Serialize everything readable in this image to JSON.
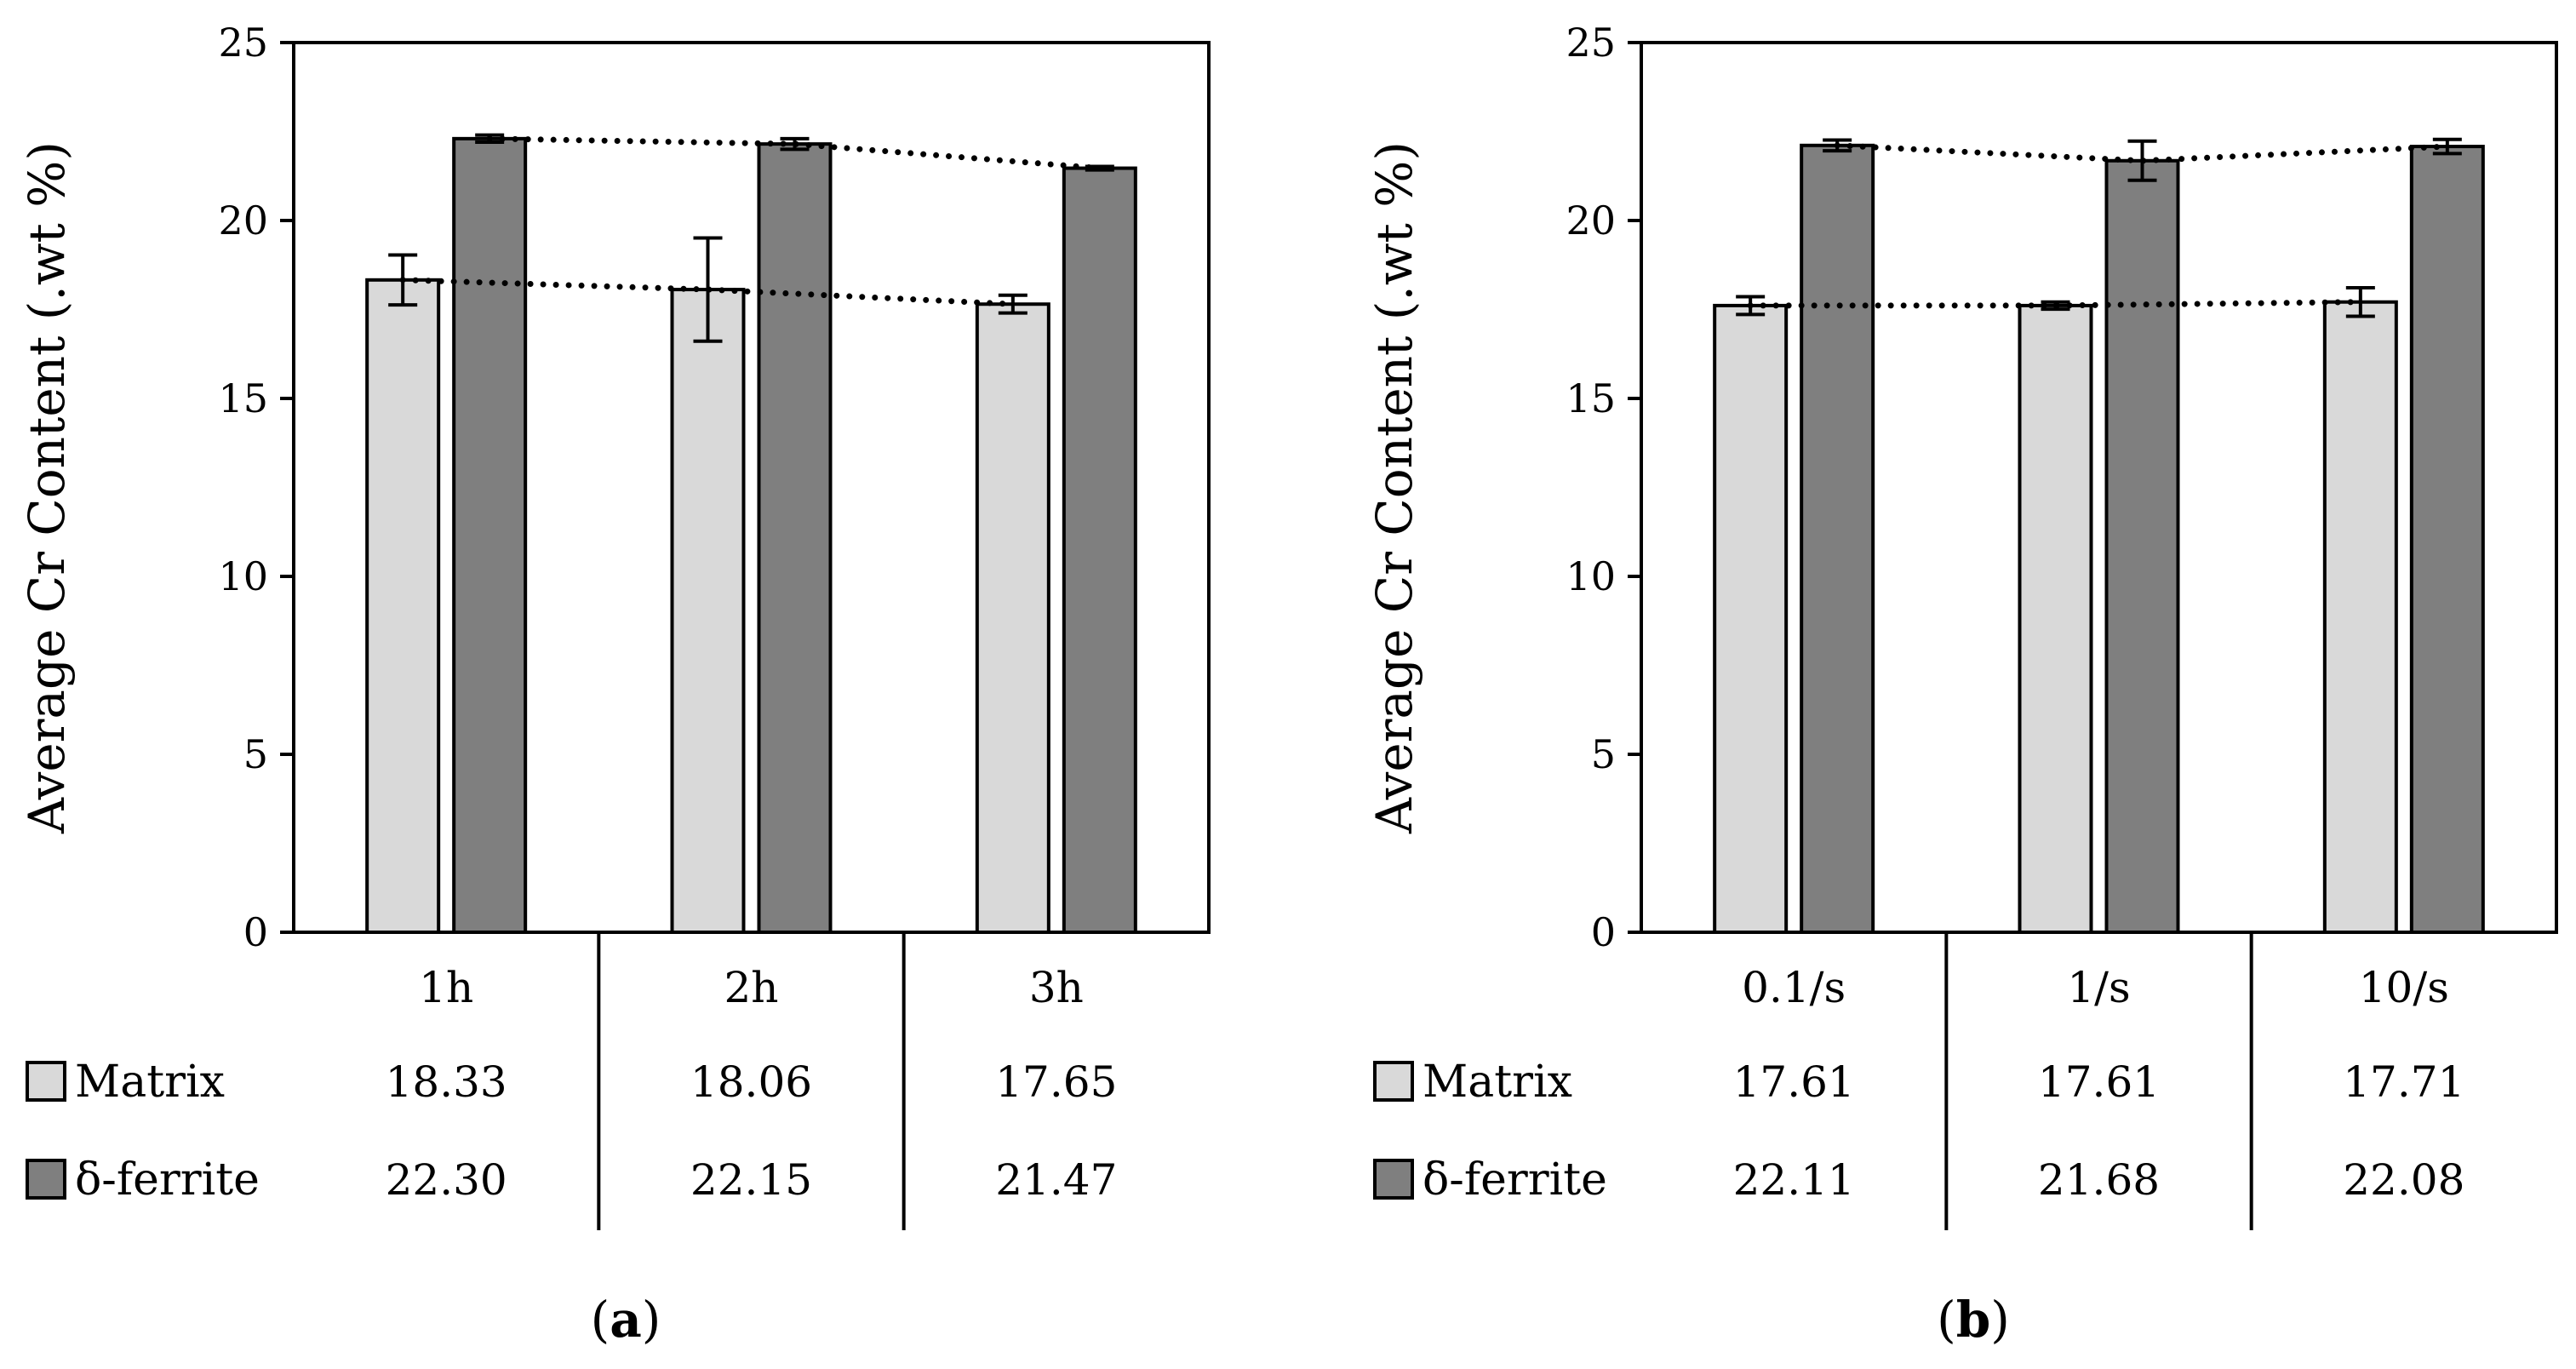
{
  "chart_data": [
    {
      "type": "bar",
      "panel_label": "(a)",
      "panel_letter": "a",
      "ylabel": "Average Cr Content (.wt %)",
      "xlabel": "",
      "ylim": [
        0,
        25
      ],
      "yticks": [
        "0",
        "5",
        "10",
        "15",
        "20",
        "25"
      ],
      "categories": [
        "1h",
        "2h",
        "3h"
      ],
      "series": [
        {
          "name": "Matrix",
          "color": "#d9d9d9",
          "values": [
            18.33,
            18.06,
            17.65
          ],
          "labels": [
            "18.33",
            "18.06",
            "17.65"
          ],
          "errors": [
            0.7,
            1.45,
            0.25
          ]
        },
        {
          "name": "δ-ferrite",
          "color": "#7f7f7f",
          "values": [
            22.3,
            22.15,
            21.47
          ],
          "labels": [
            "22.30",
            "22.15",
            "21.47"
          ],
          "errors": [
            0.1,
            0.15,
            0.05
          ]
        }
      ],
      "trendlines": "dotted",
      "grid": false,
      "legend": "data-table-bottom"
    },
    {
      "type": "bar",
      "panel_label": "(b)",
      "panel_letter": "b",
      "ylabel": "Average Cr Content (.wt %)",
      "xlabel": "",
      "ylim": [
        0,
        25
      ],
      "yticks": [
        "0",
        "5",
        "10",
        "15",
        "20",
        "25"
      ],
      "categories": [
        "0.1/s",
        "1/s",
        "10/s"
      ],
      "series": [
        {
          "name": "Matrix",
          "color": "#d9d9d9",
          "values": [
            17.61,
            17.61,
            17.71
          ],
          "labels": [
            "17.61",
            "17.61",
            "17.71"
          ],
          "errors": [
            0.25,
            0.1,
            0.4
          ]
        },
        {
          "name": "δ-ferrite",
          "color": "#7f7f7f",
          "values": [
            22.11,
            21.68,
            22.08
          ],
          "labels": [
            "22.11",
            "21.68",
            "22.08"
          ],
          "errors": [
            0.15,
            0.55,
            0.2
          ]
        }
      ],
      "trendlines": "dotted",
      "grid": false,
      "legend": "data-table-bottom"
    }
  ]
}
